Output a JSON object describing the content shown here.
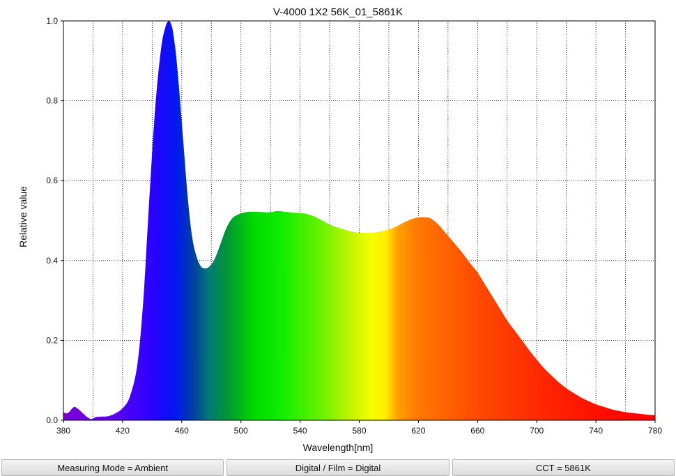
{
  "chart_data": {
    "type": "area",
    "title": "V-4000 1X2 56K_01_5861K",
    "xlabel": "Wavelength[nm]",
    "ylabel": "Relative value",
    "xlim": [
      380,
      780
    ],
    "ylim": [
      0,
      1.0
    ],
    "x_ticks": [
      380,
      420,
      460,
      500,
      540,
      580,
      620,
      660,
      700,
      740,
      780
    ],
    "x_tick_labels": [
      "380",
      "420",
      "460",
      "500",
      "540",
      "580",
      "620",
      "660",
      "700",
      "740",
      "780"
    ],
    "x_grid": [
      400,
      420,
      440,
      460,
      480,
      500,
      520,
      540,
      560,
      580,
      600,
      620,
      640,
      660,
      680,
      700,
      720,
      740,
      760
    ],
    "y_ticks": [
      0,
      0.2,
      0.4,
      0.6,
      0.8,
      1.0
    ],
    "y_tick_labels": [
      "0.0",
      "0.2",
      "0.4",
      "0.6",
      "0.8",
      "1.0"
    ],
    "grid": true,
    "fill": "visible spectrum colors",
    "series": [
      {
        "x": [
          380,
          383,
          387,
          390,
          393,
          396,
          399,
          402,
          405,
          410,
          415,
          420,
          425,
          430,
          434,
          438,
          442,
          446,
          449,
          451,
          452,
          453,
          454,
          456,
          458,
          461,
          464,
          467,
          470,
          473,
          476,
          478,
          480,
          483,
          486,
          490,
          494,
          498,
          502,
          506,
          510,
          515,
          520,
          525,
          530,
          535,
          540,
          545,
          550,
          555,
          560,
          565,
          570,
          575,
          580,
          585,
          590,
          595,
          600,
          605,
          610,
          615,
          620,
          625,
          628,
          631,
          634,
          637,
          640,
          645,
          650,
          655,
          660,
          665,
          670,
          675,
          680,
          685,
          690,
          695,
          700,
          705,
          710,
          715,
          720,
          725,
          730,
          735,
          740,
          745,
          750,
          755,
          760,
          765,
          770,
          775,
          780
        ],
        "y": [
          0.02,
          0.018,
          0.033,
          0.028,
          0.018,
          0.008,
          0.003,
          0.008,
          0.009,
          0.01,
          0.017,
          0.03,
          0.06,
          0.14,
          0.3,
          0.55,
          0.78,
          0.93,
          0.985,
          1.0,
          0.998,
          0.99,
          0.975,
          0.92,
          0.84,
          0.7,
          0.56,
          0.46,
          0.41,
          0.385,
          0.38,
          0.383,
          0.39,
          0.41,
          0.44,
          0.48,
          0.505,
          0.515,
          0.52,
          0.522,
          0.522,
          0.521,
          0.521,
          0.524,
          0.522,
          0.52,
          0.519,
          0.516,
          0.51,
          0.5,
          0.49,
          0.483,
          0.478,
          0.472,
          0.47,
          0.469,
          0.47,
          0.473,
          0.478,
          0.485,
          0.495,
          0.503,
          0.508,
          0.508,
          0.506,
          0.498,
          0.488,
          0.475,
          0.462,
          0.44,
          0.418,
          0.393,
          0.37,
          0.34,
          0.31,
          0.28,
          0.25,
          0.225,
          0.2,
          0.175,
          0.152,
          0.13,
          0.112,
          0.095,
          0.08,
          0.068,
          0.057,
          0.048,
          0.04,
          0.034,
          0.028,
          0.024,
          0.02,
          0.018,
          0.016,
          0.014,
          0.013
        ]
      }
    ]
  },
  "status": {
    "measuring_mode": "Measuring Mode = Ambient",
    "digital_film": "Digital / Film = Digital",
    "cct": "CCT = 5861K"
  }
}
